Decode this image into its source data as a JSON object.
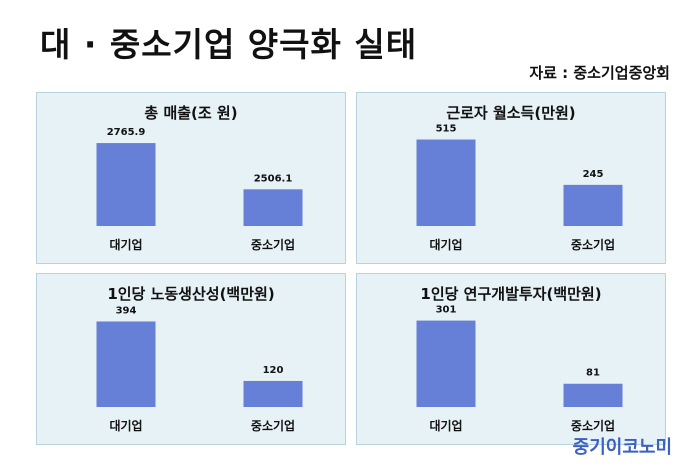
{
  "title": "대 · 중소기업 양극화 실태",
  "source": "자료 : 중소기업중앙회",
  "brand": "중기이코노미",
  "colors": {
    "bar": "#6680d8",
    "panel_bg": "#e7f2f6"
  },
  "chart_data": [
    {
      "type": "bar",
      "title": "총 매출(조 원)",
      "categories": [
        "대기업",
        "중소기업"
      ],
      "values": [
        2765.9,
        2506.1
      ],
      "labels": [
        "2765.9",
        "2506.1"
      ],
      "ylim": [
        2300,
        2800
      ]
    },
    {
      "type": "bar",
      "title": "근로자 월소득(만원)",
      "categories": [
        "대기업",
        "중소기업"
      ],
      "values": [
        515,
        245
      ],
      "labels": [
        "515",
        "245"
      ],
      "ylim": [
        0,
        530
      ]
    },
    {
      "type": "bar",
      "title": "1인당 노동생산성(백만원)",
      "categories": [
        "대기업",
        "중소기업"
      ],
      "values": [
        394,
        120
      ],
      "labels": [
        "394",
        "120"
      ],
      "ylim": [
        0,
        410
      ]
    },
    {
      "type": "bar",
      "title": "1인당 연구개발투자(백만원)",
      "categories": [
        "대기업",
        "중소기업"
      ],
      "values": [
        301,
        81
      ],
      "labels": [
        "301",
        "81"
      ],
      "ylim": [
        0,
        310
      ]
    }
  ]
}
